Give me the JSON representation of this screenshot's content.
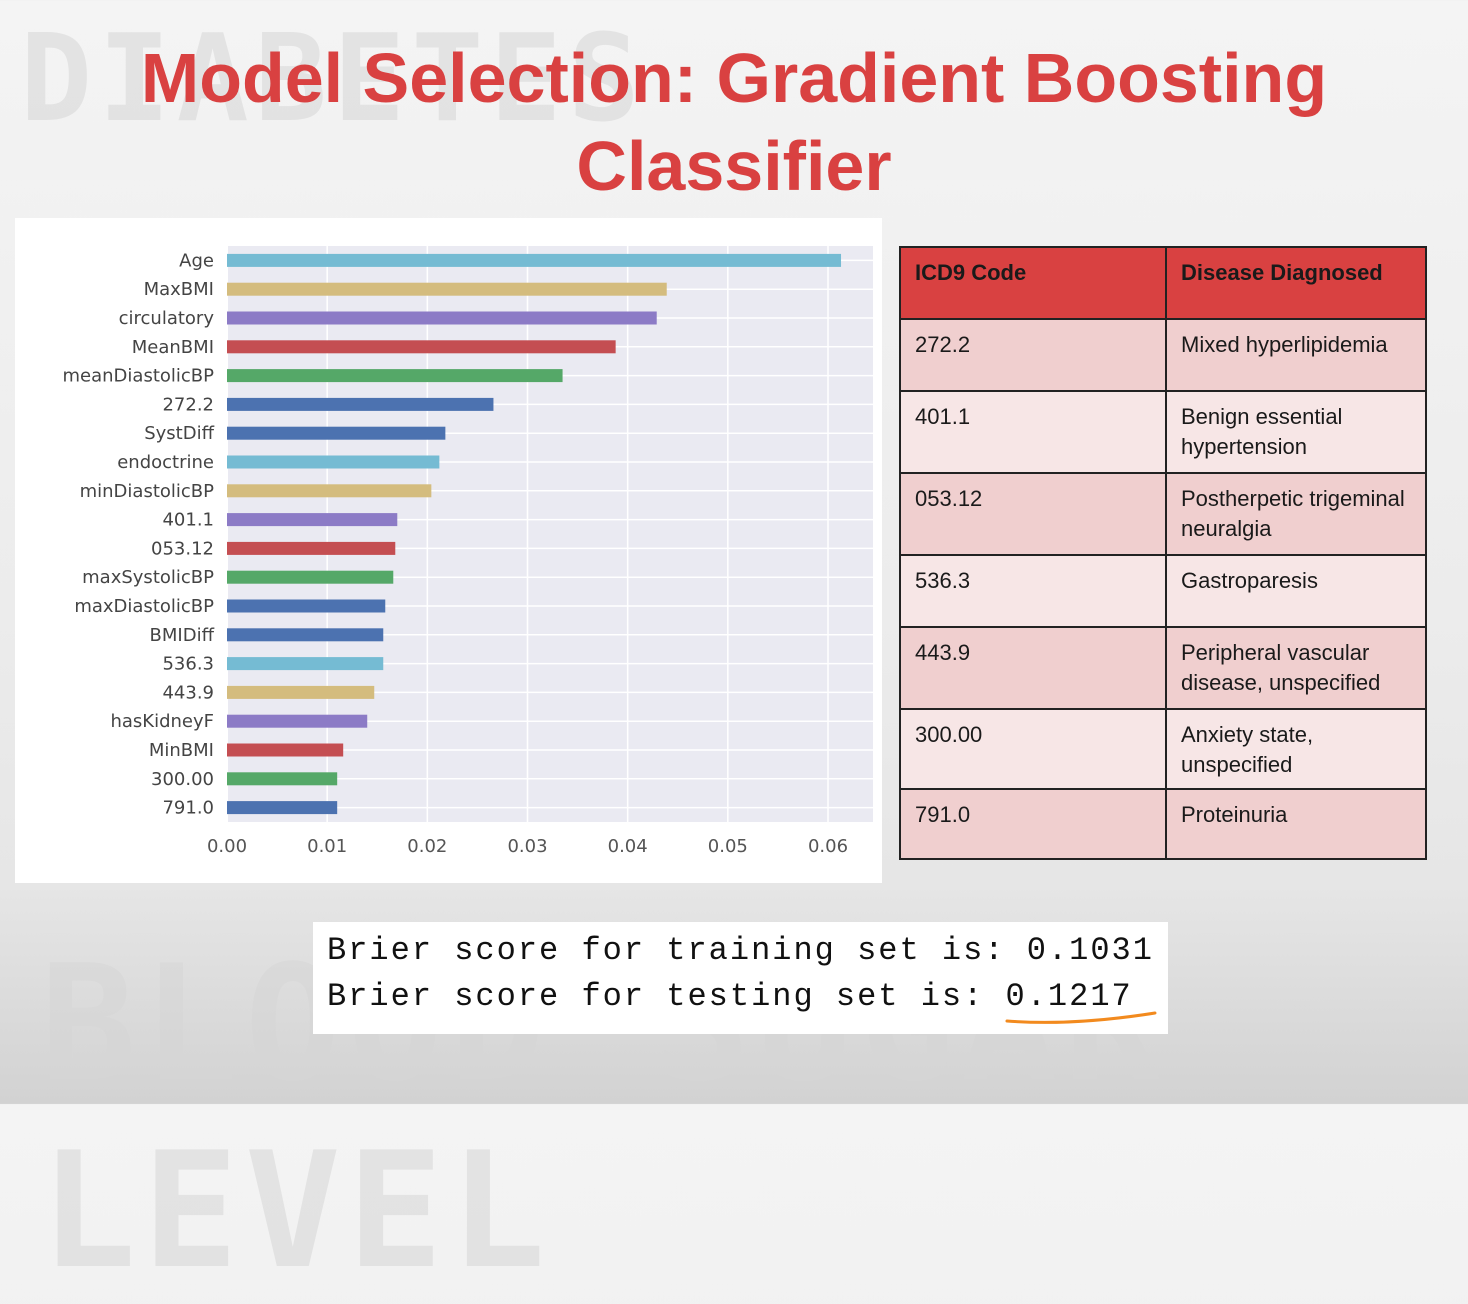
{
  "title": "Model Selection: Gradient Boosting Classifier",
  "title_line1": "Model Selection: Gradient Boosting",
  "title_line2": "Classifier",
  "watermark_top": "DIABETES",
  "watermark_bottom": "BLOOD SUGAR LEVEL",
  "colors": {
    "title": "#d94141",
    "table_header": "#d94141",
    "row_odd": "#f0cfcf",
    "row_even": "#f7e6e6",
    "underline": "#f28a1e"
  },
  "chart_data": {
    "type": "bar",
    "orientation": "horizontal",
    "categories": [
      "Age",
      "MaxBMI",
      "circulatory",
      "MeanBMI",
      "meanDiastolicBP",
      "272.2",
      "SystDiff",
      "endoctrine",
      "minDiastolicBP",
      "401.1",
      "053.12",
      "maxSystolicBP",
      "maxDiastolicBP",
      "BMIDiff",
      "536.3",
      "443.9",
      "hasKidneyF",
      "MinBMI",
      "300.00",
      "791.0"
    ],
    "values": [
      0.0613,
      0.0439,
      0.0429,
      0.0388,
      0.0335,
      0.0266,
      0.0218,
      0.0212,
      0.0204,
      0.017,
      0.0168,
      0.0166,
      0.0158,
      0.0156,
      0.0156,
      0.0147,
      0.014,
      0.0116,
      0.011,
      0.011
    ],
    "colors": [
      "#75bbd3",
      "#d4bc7e",
      "#8c7bc6",
      "#c44e52",
      "#55a868",
      "#4c72b0",
      "#4c72b0",
      "#75bbd3",
      "#d4bc7e",
      "#8c7bc6",
      "#c44e52",
      "#55a868",
      "#4c72b0",
      "#4c72b0",
      "#75bbd3",
      "#d4bc7e",
      "#8c7bc6",
      "#c44e52",
      "#55a868",
      "#4c72b0"
    ],
    "xticks": [
      "0.00",
      "0.01",
      "0.02",
      "0.03",
      "0.04",
      "0.05",
      "0.06"
    ],
    "xlim": [
      0,
      0.064
    ],
    "grid": true,
    "title": "",
    "xlabel": "",
    "ylabel": ""
  },
  "table": {
    "headers": [
      "ICD9 Code",
      "Disease Diagnosed"
    ],
    "rows": [
      {
        "code": "272.2",
        "disease": "Mixed hyperlipidemia"
      },
      {
        "code": "401.1",
        "disease": "Benign essential hypertension"
      },
      {
        "code": "053.12",
        "disease": "Postherpetic trigeminal neuralgia"
      },
      {
        "code": "536.3",
        "disease": "Gastroparesis"
      },
      {
        "code": "443.9",
        "disease": "Peripheral vascular disease, unspecified"
      },
      {
        "code": "300.00",
        "disease": "Anxiety state, unspecified"
      },
      {
        "code": "791.0",
        "disease": "Proteinuria"
      }
    ]
  },
  "brier": {
    "training": "Brier score for training set is: 0.1031",
    "testing": "Brier score for testing set is: 0.1217"
  }
}
